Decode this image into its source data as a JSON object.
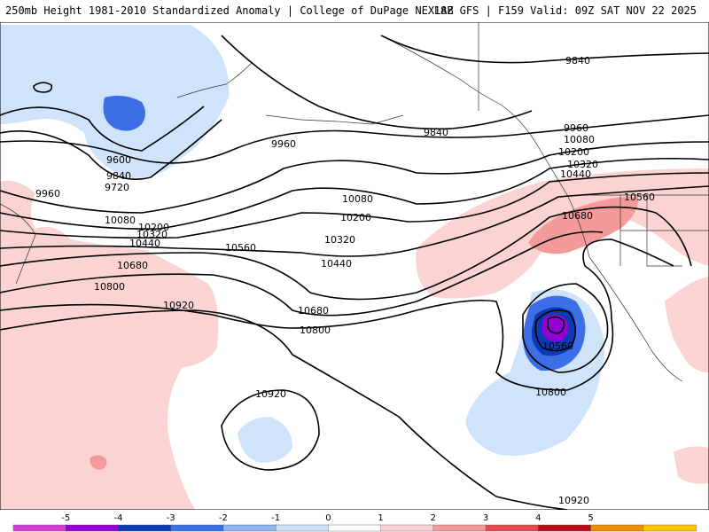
{
  "header": {
    "title": "250mb Height 1981-2010 Standardized Anomaly | College of DuPage NEXLAB",
    "run_info": "18Z GFS | F159 Valid: 09Z SAT NOV 22 2025"
  },
  "contour_labels": [
    {
      "id": "c9840-n",
      "text": "9840"
    },
    {
      "id": "c9840-ak",
      "text": "9840"
    },
    {
      "id": "c9840-w",
      "text": "9840"
    },
    {
      "id": "c9960-mid",
      "text": "9960"
    },
    {
      "id": "c9960-w",
      "text": "9960"
    },
    {
      "id": "c9960-e",
      "text": "9960"
    },
    {
      "id": "c9600",
      "text": "9600"
    },
    {
      "id": "c9720",
      "text": "9720"
    },
    {
      "id": "c10080-w",
      "text": "10080"
    },
    {
      "id": "c10080-mid",
      "text": "10080"
    },
    {
      "id": "c10080-e",
      "text": "10080"
    },
    {
      "id": "c10200-w",
      "text": "10200"
    },
    {
      "id": "c10200-mid",
      "text": "10200"
    },
    {
      "id": "c10200-e",
      "text": "10200"
    },
    {
      "id": "c10320-w",
      "text": "10320"
    },
    {
      "id": "c10320-mid",
      "text": "10320"
    },
    {
      "id": "c10320-e",
      "text": "10320"
    },
    {
      "id": "c10440-w",
      "text": "10440"
    },
    {
      "id": "c10440-mid",
      "text": "10440"
    },
    {
      "id": "c10440-e",
      "text": "10440"
    },
    {
      "id": "c10560-w",
      "text": "10560"
    },
    {
      "id": "c10560-ne",
      "text": "10560"
    },
    {
      "id": "c10560-low",
      "text": "10560"
    },
    {
      "id": "c10680-w",
      "text": "10680"
    },
    {
      "id": "c10680-mid",
      "text": "10680"
    },
    {
      "id": "c10680-e",
      "text": "10680"
    },
    {
      "id": "c10800-w",
      "text": "10800"
    },
    {
      "id": "c10800-mid",
      "text": "10800"
    },
    {
      "id": "c10800-low",
      "text": "10800"
    },
    {
      "id": "c10920-w",
      "text": "10920"
    },
    {
      "id": "c10920-mid",
      "text": "10920"
    },
    {
      "id": "c10920-s",
      "text": "10920"
    }
  ],
  "legend": {
    "ticks": [
      "-5",
      "-4",
      "-3",
      "-2",
      "-1",
      "0",
      "1",
      "2",
      "3",
      "4",
      "5"
    ],
    "colors": [
      "#d63cd6",
      "#9400d3",
      "#0a3bb5",
      "#3c6ee6",
      "#8fb5f5",
      "#cfe4fb",
      "#ffffff",
      "#fbd3d3",
      "#f59a9a",
      "#e9494d",
      "#b80d16",
      "#f28c00",
      "#ffc200"
    ]
  },
  "colors": {
    "neg1": "#cfe4fb",
    "neg2": "#3c6ee6",
    "neg3": "#0a3bb5",
    "neg4": "#9400d3",
    "pos1": "#fbd3d3",
    "pos2": "#f59a9a",
    "pos3": "#e9494d"
  }
}
